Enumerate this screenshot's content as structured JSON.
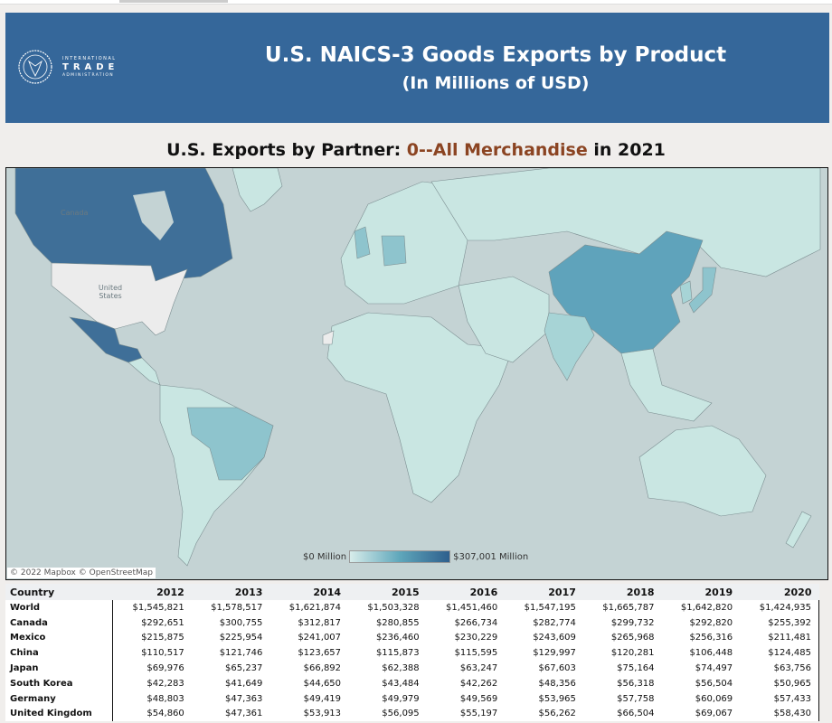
{
  "header": {
    "logo_lines": [
      "INTERNATIONAL",
      "TRADE",
      "ADMINISTRATION"
    ],
    "title": "U.S. NAICS-3 Goods Exports by Product",
    "subtitle": "(In Millions of USD)"
  },
  "map": {
    "title_prefix": "U.S. Exports by Partner: ",
    "product": "0--All Merchandise",
    "title_suffix": " in 2021",
    "legend_min": "$0 Million",
    "legend_max": "$307,001 Million",
    "credit": "© 2022 Mapbox © OpenStreetMap",
    "labels": {
      "canada": "Canada",
      "us": "United States"
    },
    "colors": {
      "high": "#2e5f8d",
      "mid": "#6aaec0",
      "low": "#c9e6e2",
      "none": "#ececec",
      "water": "#c4d3d4",
      "title_accent": "#8b4422",
      "banner": "#35679a"
    }
  },
  "table": {
    "headers": [
      "Country",
      "2012",
      "2013",
      "2014",
      "2015",
      "2016",
      "2017",
      "2018",
      "2019",
      "2020"
    ],
    "rows": [
      [
        "World",
        "$1,545,821",
        "$1,578,517",
        "$1,621,874",
        "$1,503,328",
        "$1,451,460",
        "$1,547,195",
        "$1,665,787",
        "$1,642,820",
        "$1,424,935"
      ],
      [
        "Canada",
        "$292,651",
        "$300,755",
        "$312,817",
        "$280,855",
        "$266,734",
        "$282,774",
        "$299,732",
        "$292,820",
        "$255,392"
      ],
      [
        "Mexico",
        "$215,875",
        "$225,954",
        "$241,007",
        "$236,460",
        "$230,229",
        "$243,609",
        "$265,968",
        "$256,316",
        "$211,481"
      ],
      [
        "China",
        "$110,517",
        "$121,746",
        "$123,657",
        "$115,873",
        "$115,595",
        "$129,997",
        "$120,281",
        "$106,448",
        "$124,485"
      ],
      [
        "Japan",
        "$69,976",
        "$65,237",
        "$66,892",
        "$62,388",
        "$63,247",
        "$67,603",
        "$75,164",
        "$74,497",
        "$63,756"
      ],
      [
        "South Korea",
        "$42,283",
        "$41,649",
        "$44,650",
        "$43,484",
        "$42,262",
        "$48,356",
        "$56,318",
        "$56,504",
        "$50,965"
      ],
      [
        "Germany",
        "$48,803",
        "$47,363",
        "$49,419",
        "$49,979",
        "$49,569",
        "$53,965",
        "$57,758",
        "$60,069",
        "$57,433"
      ],
      [
        "United Kingdom",
        "$54,860",
        "$47,361",
        "$53,913",
        "$56,095",
        "$55,197",
        "$56,262",
        "$66,504",
        "$69,067",
        "$58,430"
      ]
    ]
  }
}
